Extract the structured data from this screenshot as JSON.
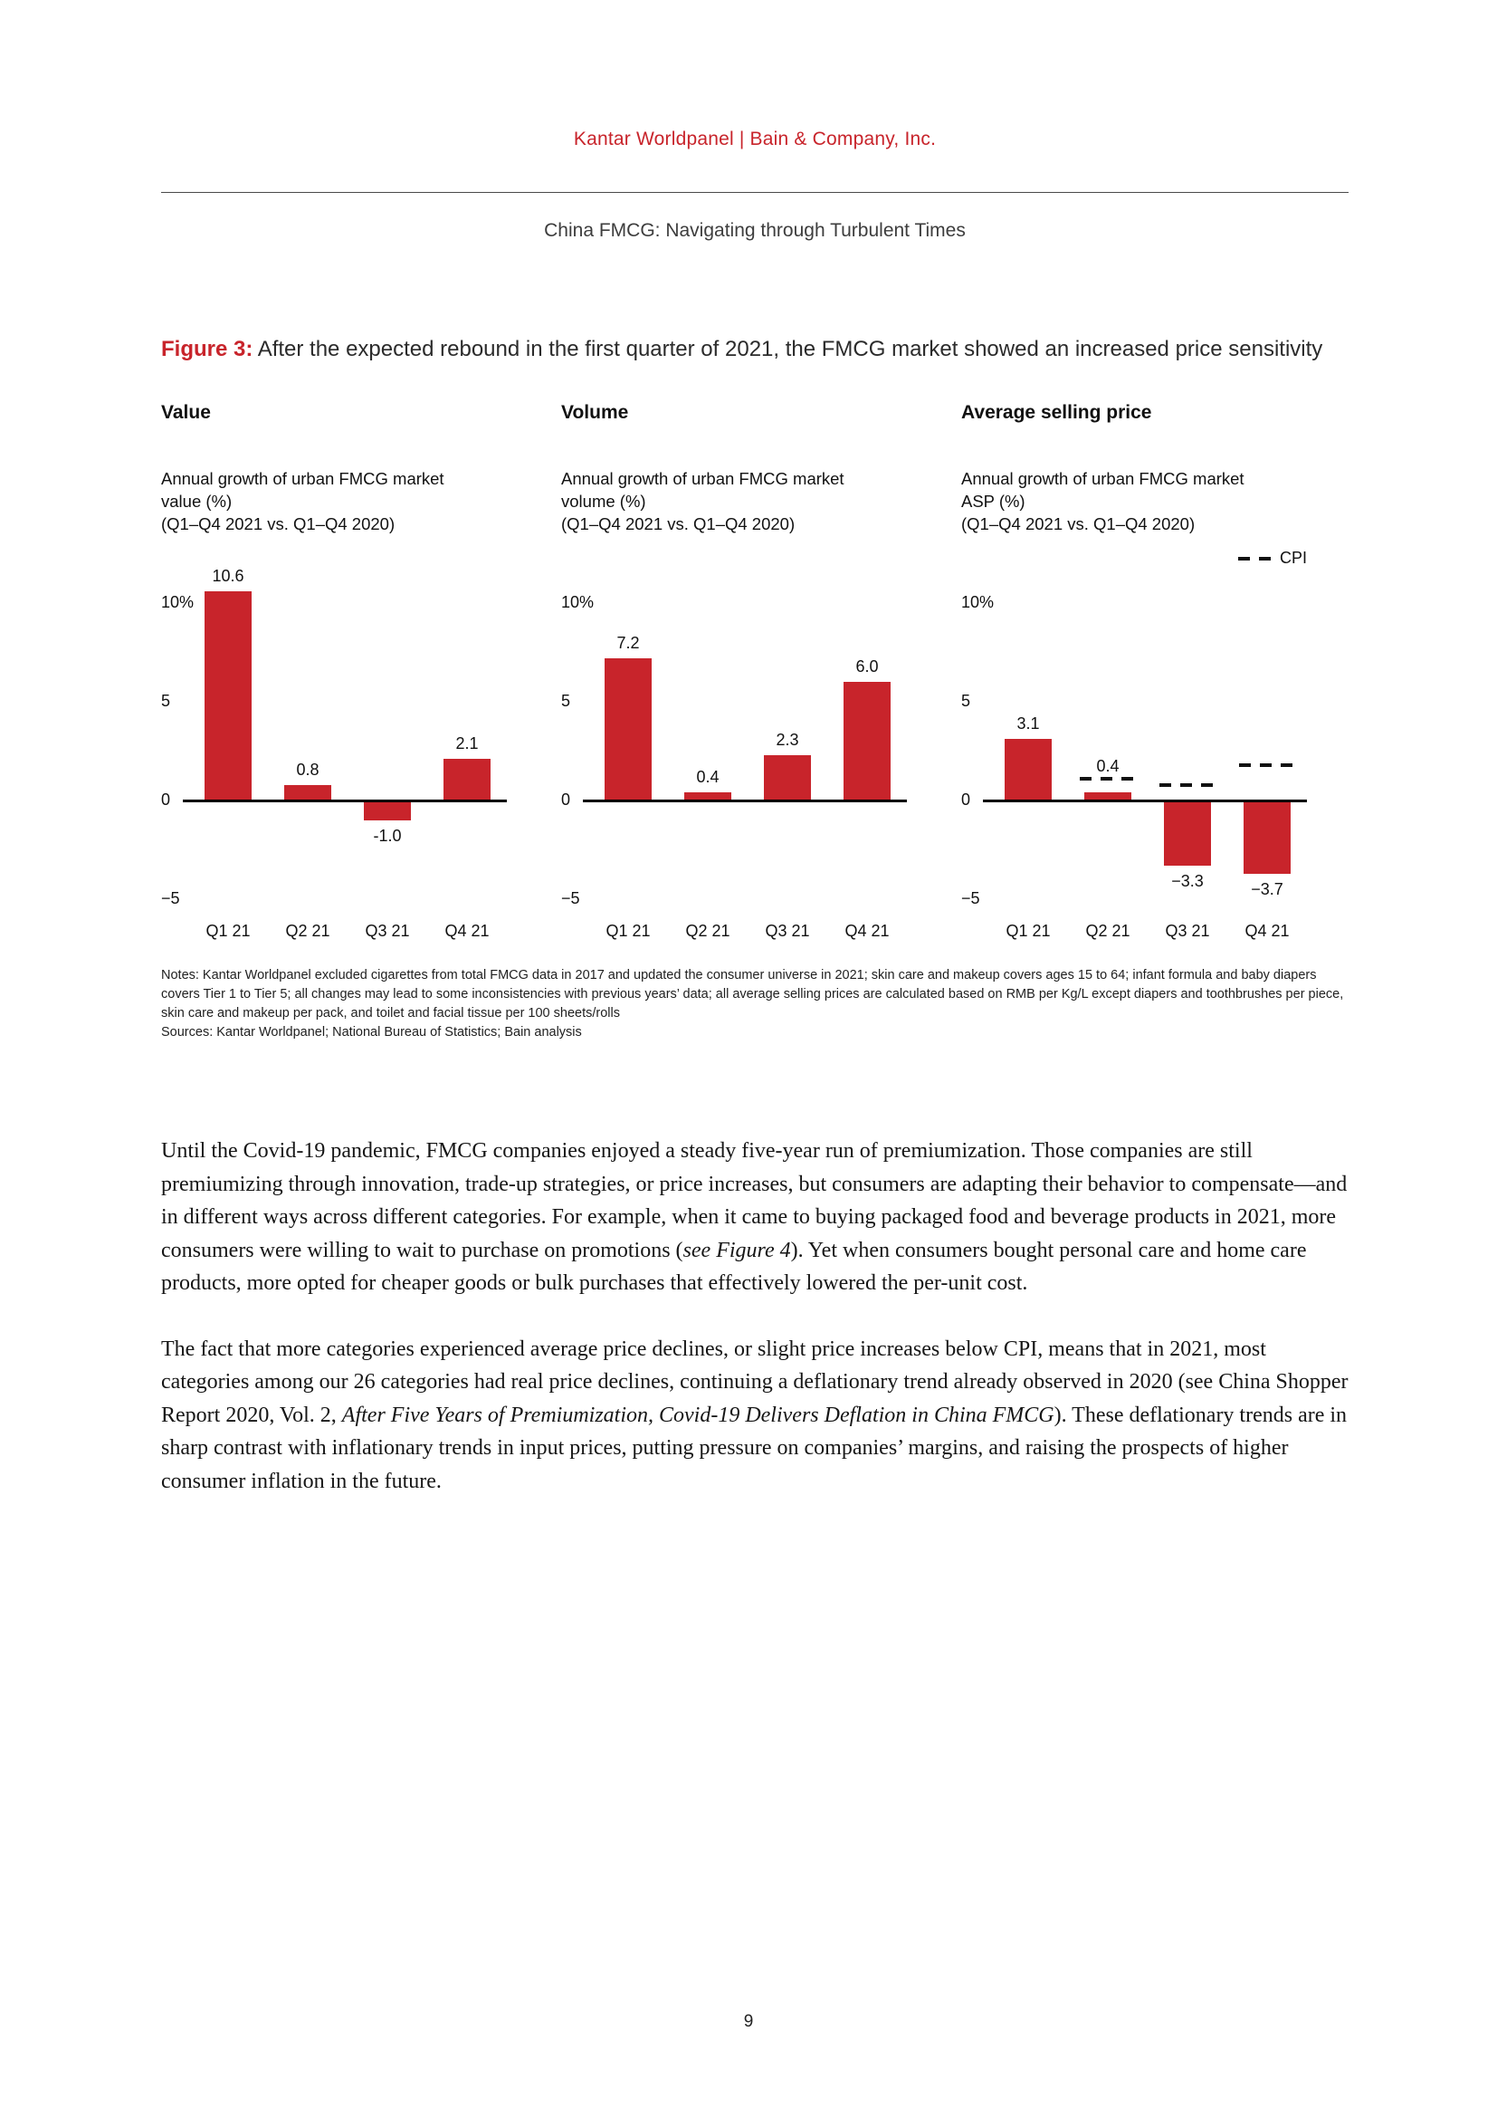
{
  "colors": {
    "accent_red": "#c8242b",
    "bar_red": "#c8242b",
    "axis_black": "#000000"
  },
  "page": {
    "header_brand": "Kantar Worldpanel  |  Bain & Company, Inc.",
    "header_title": "China FMCG: Navigating through Turbulent Times",
    "page_number": "9"
  },
  "figure": {
    "label": "Figure 3:",
    "caption": " After the expected rebound in the first quarter of 2021, the FMCG market showed an increased price sensitivity",
    "notes": "Notes: Kantar Worldpanel excluded cigarettes from total FMCG data in 2017 and updated the consumer universe in 2021; skin care and makeup covers ages 15 to 64; infant formula and baby diapers covers Tier 1 to Tier 5; all changes may lead to some inconsistencies with previous years’ data; all average selling prices are calculated based on RMB per Kg/L except diapers and toothbrushes per piece, skin care and makeup per pack, and toilet and facial tissue per 100 sheets/rolls",
    "sources": "Sources: Kantar Worldpanel; National Bureau of Statistics; Bain analysis"
  },
  "chart_data": [
    {
      "type": "bar",
      "title": "Value",
      "subtitle": "Annual growth of urban FMCG market value (%)",
      "period": "(Q1–Q4 2021 vs. Q1–Q4 2020)",
      "categories": [
        "Q1 21",
        "Q2 21",
        "Q3 21",
        "Q4 21"
      ],
      "values": [
        10.6,
        0.8,
        -1.0,
        2.1
      ],
      "value_labels": [
        "10.6",
        "0.8",
        "-1.0",
        "2.1"
      ],
      "yticks": [
        {
          "value": 10,
          "label": "10%"
        },
        {
          "value": 5,
          "label": "5"
        },
        {
          "value": 0,
          "label": "0"
        },
        {
          "value": -5,
          "label": "−5"
        }
      ],
      "ylim": [
        -5.4,
        12
      ],
      "grid": false,
      "bar_color": "#c8242b"
    },
    {
      "type": "bar",
      "title": "Volume",
      "subtitle": "Annual growth of urban FMCG market volume (%)",
      "period": "(Q1–Q4 2021 vs. Q1–Q4 2020)",
      "categories": [
        "Q1 21",
        "Q2 21",
        "Q3 21",
        "Q4 21"
      ],
      "values": [
        7.2,
        0.4,
        2.3,
        6.0
      ],
      "value_labels": [
        "7.2",
        "0.4",
        "2.3",
        "6.0"
      ],
      "yticks": [
        {
          "value": 10,
          "label": "10%"
        },
        {
          "value": 5,
          "label": "5"
        },
        {
          "value": 0,
          "label": "0"
        },
        {
          "value": -5,
          "label": "−5"
        }
      ],
      "ylim": [
        -5.4,
        12
      ],
      "grid": false,
      "bar_color": "#c8242b"
    },
    {
      "type": "bar",
      "title": "Average selling price",
      "subtitle": "Annual growth of urban FMCG market ASP (%)",
      "period": "(Q1–Q4 2021 vs. Q1–Q4 2020)",
      "categories": [
        "Q1 21",
        "Q2 21",
        "Q3 21",
        "Q4 21"
      ],
      "values": [
        3.1,
        0.4,
        -3.3,
        -3.7
      ],
      "value_labels": [
        "3.1",
        "0.4",
        "−3.3",
        "−3.7"
      ],
      "yticks": [
        {
          "value": 10,
          "label": "10%"
        },
        {
          "value": 5,
          "label": "5"
        },
        {
          "value": 0,
          "label": "0"
        },
        {
          "value": -5,
          "label": "−5"
        }
      ],
      "ylim": [
        -5.4,
        12
      ],
      "grid": false,
      "bar_color": "#c8242b",
      "cpi": {
        "label": "CPI",
        "values": [
          null,
          1.1,
          0.8,
          1.8
        ]
      }
    }
  ],
  "body": {
    "paragraphs": [
      {
        "runs": [
          {
            "text": "Until the Covid-19 pandemic, FMCG companies enjoyed a steady five-year run of premiumization. Those companies are still premiumizing through innovation, trade-up strategies, or price increases, but consumers are adapting their behavior to compensate—and in different ways across different categories. For example, when it came to buying packaged food and beverage products in 2021, more consumers were willing to wait to purchase on promotions ("
          },
          {
            "text": "see Figure 4",
            "italic": true
          },
          {
            "text": "). Yet when consumers bought personal care and home care products, more opted for cheaper goods or bulk purchases that effectively lowered the per-unit cost."
          }
        ]
      },
      {
        "runs": [
          {
            "text": "The fact that more categories experienced average price declines, or slight price increases below CPI, means that in 2021, most categories among our 26 categories had real price declines, continuing a deflationary trend already observed in 2020 (see China Shopper Report 2020, Vol. 2, "
          },
          {
            "text": "After Five Years of Premiumization, Covid-19 Delivers Deflation in China FMCG",
            "italic": true
          },
          {
            "text": "). These deflationary trends are in sharp contrast with inflationary trends in input prices, putting pressure on companies’ margins, and raising the prospects of higher consumer inflation in the future."
          }
        ]
      }
    ]
  }
}
